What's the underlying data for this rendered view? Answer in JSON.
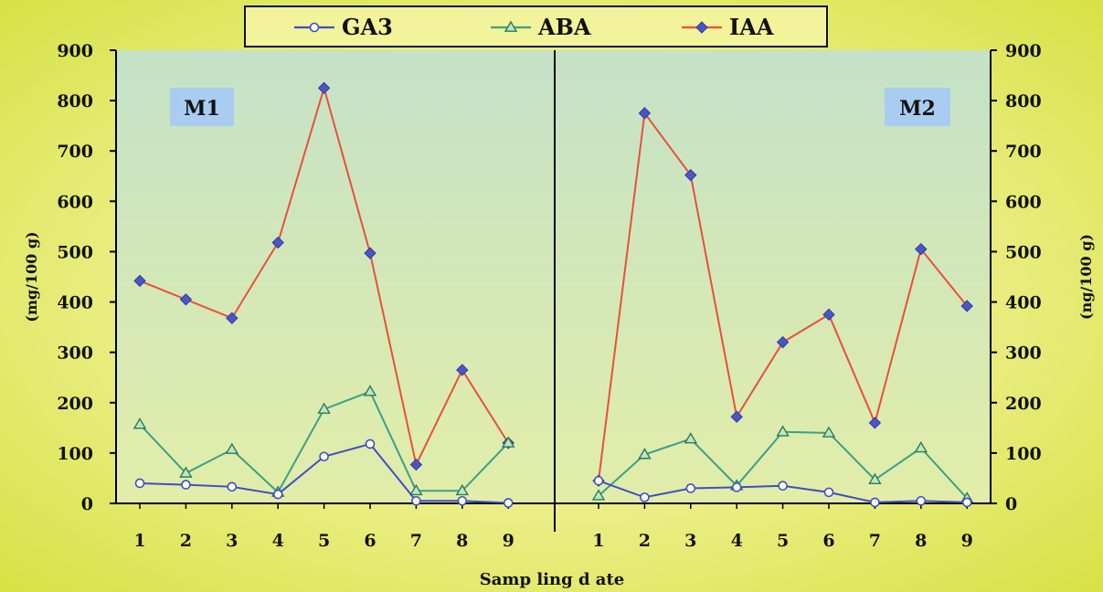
{
  "chart_data": {
    "type": "line",
    "xlabel": "Samp ling d ate",
    "ylabel_left": "(mg/100 g)",
    "ylabel_right": "(ng/100 g)",
    "ylim": [
      0,
      900
    ],
    "yticks": [
      0,
      100,
      200,
      300,
      400,
      500,
      600,
      700,
      800,
      900
    ],
    "x": [
      1,
      2,
      3,
      4,
      5,
      6,
      7,
      8,
      9
    ],
    "legend": {
      "position": "top-center"
    },
    "colors": {
      "GA3": "#3d4fc4",
      "ABA": "#3aa088",
      "IAA": "#e8503a"
    },
    "panels": [
      {
        "label": "M1",
        "series": [
          {
            "name": "GA3",
            "marker": "circle",
            "values": [
              40,
              37,
              33,
              18,
              93,
              118,
              5,
              5,
              1
            ]
          },
          {
            "name": "ABA",
            "marker": "triangle",
            "values": [
              157,
              60,
              107,
              22,
              187,
              222,
              25,
              25,
              120
            ]
          },
          {
            "name": "IAA",
            "marker": "diamond",
            "values": [
              442,
              405,
              368,
              518,
              825,
              497,
              77,
              265,
              120
            ]
          }
        ]
      },
      {
        "label": "M2",
        "series": [
          {
            "name": "GA3",
            "marker": "circle",
            "values": [
              45,
              12,
              30,
              32,
              35,
              22,
              2,
              5,
              2
            ]
          },
          {
            "name": "ABA",
            "marker": "triangle",
            "values": [
              15,
              97,
              128,
              35,
              142,
              140,
              47,
              110,
              10
            ]
          },
          {
            "name": "IAA",
            "marker": "diamond",
            "values": [
              45,
              775,
              652,
              172,
              320,
              375,
              160,
              505,
              392
            ]
          }
        ]
      }
    ]
  }
}
